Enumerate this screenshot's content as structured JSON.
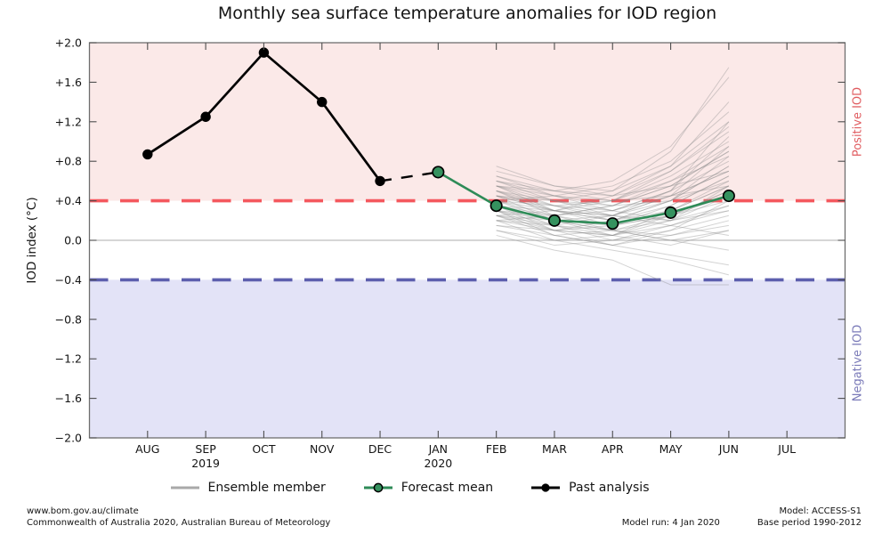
{
  "chart_data": {
    "type": "line",
    "title": "Monthly sea surface temperature anomalies for IOD region",
    "ylabel": "IOD index (°C)",
    "ylim": [
      -2.0,
      2.0
    ],
    "yticks": [
      2.0,
      1.6,
      1.2,
      0.8,
      0.4,
      0.0,
      -0.4,
      -0.8,
      -1.2,
      -1.6,
      -2.0
    ],
    "ytick_labels": [
      "+2.0",
      "+1.6",
      "+1.2",
      "+0.8",
      "+0.4",
      "0.0",
      "−0.4",
      "−0.8",
      "−1.2",
      "−1.6",
      "−2.0"
    ],
    "x_categories": [
      "AUG",
      "SEP",
      "OCT",
      "NOV",
      "DEC",
      "JAN",
      "FEB",
      "MAR",
      "APR",
      "MAY",
      "JUN",
      "JUL"
    ],
    "year_labels": [
      {
        "index": 1,
        "label": "2019"
      },
      {
        "index": 5,
        "label": "2020"
      }
    ],
    "grid": "zero-line-only",
    "legend_position": "bottom",
    "thresholds": {
      "positive": 0.4,
      "negative": -0.4
    },
    "band_labels": {
      "positive": "Positive IOD",
      "negative": "Negative IOD"
    },
    "series": [
      {
        "name": "Past analysis",
        "x": [
          "AUG",
          "SEP",
          "OCT",
          "NOV",
          "DEC"
        ],
        "values": [
          0.87,
          1.25,
          1.9,
          1.4,
          0.6
        ]
      },
      {
        "name": "Past-to-forecast transition",
        "x": [
          "DEC",
          "JAN"
        ],
        "values": [
          0.6,
          0.69
        ]
      },
      {
        "name": "Forecast mean",
        "x": [
          "JAN",
          "FEB",
          "MAR",
          "APR",
          "MAY",
          "JUN"
        ],
        "values": [
          0.69,
          0.35,
          0.2,
          0.17,
          0.28,
          0.45
        ]
      }
    ],
    "ensemble_x": [
      "FEB",
      "MAR",
      "APR",
      "MAY",
      "JUN"
    ],
    "ensemble_members": [
      [
        0.45,
        0.3,
        0.25,
        0.4,
        0.6
      ],
      [
        0.3,
        0.15,
        0.1,
        0.2,
        0.35
      ],
      [
        0.55,
        0.4,
        0.3,
        0.45,
        0.7
      ],
      [
        0.2,
        0.1,
        0.05,
        0.15,
        0.3
      ],
      [
        0.4,
        0.25,
        0.35,
        0.55,
        0.9
      ],
      [
        0.35,
        0.2,
        0.1,
        0.05,
        0.15
      ],
      [
        0.5,
        0.35,
        0.2,
        0.3,
        0.55
      ],
      [
        0.25,
        0.05,
        -0.05,
        0.1,
        0.25
      ],
      [
        0.6,
        0.45,
        0.4,
        0.6,
        0.85
      ],
      [
        0.3,
        0.25,
        0.3,
        0.5,
        1.2
      ],
      [
        0.45,
        0.2,
        0.05,
        -0.05,
        0.1
      ],
      [
        0.15,
        0.05,
        0.1,
        0.25,
        0.45
      ],
      [
        0.55,
        0.45,
        0.55,
        0.8,
        1.3
      ],
      [
        0.35,
        0.15,
        0.0,
        0.1,
        0.4
      ],
      [
        0.25,
        0.3,
        0.4,
        0.65,
        1.0
      ],
      [
        0.5,
        0.3,
        0.15,
        0.25,
        0.5
      ],
      [
        0.4,
        0.35,
        0.25,
        0.15,
        0.05
      ],
      [
        0.2,
        0.0,
        -0.1,
        -0.2,
        -0.35
      ],
      [
        0.65,
        0.5,
        0.45,
        0.7,
        1.1
      ],
      [
        0.3,
        0.1,
        0.2,
        0.4,
        0.75
      ],
      [
        0.45,
        0.4,
        0.5,
        0.9,
        1.75
      ],
      [
        0.25,
        0.15,
        0.05,
        0.2,
        0.55
      ],
      [
        0.55,
        0.35,
        0.3,
        0.5,
        0.8
      ],
      [
        0.1,
        -0.05,
        0.0,
        0.15,
        0.35
      ],
      [
        0.4,
        0.3,
        0.2,
        0.35,
        0.65
      ],
      [
        0.6,
        0.4,
        0.25,
        0.2,
        0.3
      ],
      [
        0.35,
        0.25,
        0.35,
        0.6,
        0.95
      ],
      [
        0.2,
        0.15,
        0.25,
        0.45,
        0.7
      ],
      [
        0.5,
        0.25,
        0.1,
        0.0,
        -0.1
      ],
      [
        0.3,
        0.2,
        0.15,
        0.3,
        0.6
      ],
      [
        0.7,
        0.55,
        0.5,
        0.75,
        1.2
      ],
      [
        0.15,
        0.1,
        -0.05,
        -0.15,
        -0.25
      ],
      [
        0.45,
        0.35,
        0.4,
        0.7,
        1.15
      ],
      [
        0.25,
        0.1,
        0.15,
        0.35,
        0.65
      ],
      [
        0.55,
        0.5,
        0.6,
        0.95,
        1.65
      ],
      [
        0.35,
        0.3,
        0.2,
        0.4,
        0.85
      ],
      [
        0.05,
        -0.1,
        -0.2,
        -0.45,
        -0.45
      ],
      [
        0.5,
        0.4,
        0.35,
        0.55,
        0.9
      ],
      [
        0.3,
        0.05,
        -0.05,
        0.05,
        0.2
      ],
      [
        0.6,
        0.5,
        0.4,
        0.45,
        0.55
      ],
      [
        0.4,
        0.2,
        0.25,
        0.5,
        1.05
      ],
      [
        0.2,
        0.25,
        0.15,
        0.25,
        0.4
      ],
      [
        0.65,
        0.45,
        0.35,
        0.4,
        0.75
      ],
      [
        0.35,
        0.1,
        0.05,
        0.25,
        0.5
      ],
      [
        0.45,
        0.3,
        0.45,
        0.75,
        1.4
      ],
      [
        0.25,
        0.2,
        0.1,
        0.0,
        0.1
      ],
      [
        0.55,
        0.3,
        0.25,
        0.45,
        0.95
      ],
      [
        0.1,
        0.0,
        0.05,
        0.3,
        0.55
      ],
      [
        0.75,
        0.55,
        0.45,
        0.55,
        0.7
      ],
      [
        0.4,
        0.45,
        0.3,
        0.2,
        0.45
      ]
    ],
    "colors": {
      "positive_band_fill": "#fbe9e8",
      "negative_band_fill": "#e3e3f7",
      "positive_threshold": "#f4585e",
      "negative_threshold": "#5d5fae",
      "positive_label": "#e05c60",
      "negative_label": "#7a7ab8",
      "past_analysis": "#000000",
      "forecast_mean": "#2e8b57",
      "forecast_marker_fill": "#35925f",
      "ensemble": "#8c8c8c",
      "zero_line": "#adadad",
      "frame": "#6e6e6e",
      "tick": "#4d4d4d"
    }
  },
  "legend": {
    "items": [
      {
        "name": "ensemble",
        "label": "Ensemble member"
      },
      {
        "name": "forecast",
        "label": "Forecast mean"
      },
      {
        "name": "past",
        "label": "Past analysis"
      }
    ]
  },
  "footer": {
    "site": "www.bom.gov.au/climate",
    "copyright": "Commonwealth of Australia 2020, Australian Bureau of Meteorology",
    "model": "Model: ACCESS-S1",
    "model_run": "Model run: 4 Jan 2020",
    "base_period": "Base period 1990-2012"
  }
}
